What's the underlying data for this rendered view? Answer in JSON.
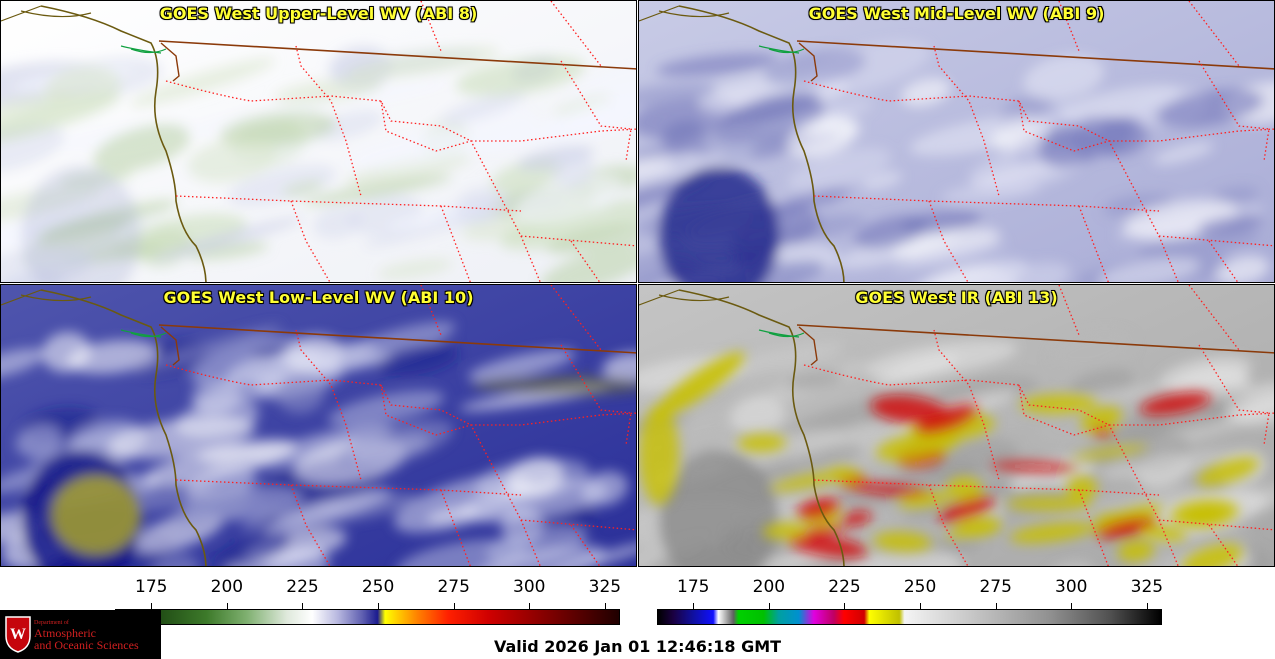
{
  "panels": [
    {
      "title": "GOES West Upper-Level WV (ABI 8)",
      "palette": "upper"
    },
    {
      "title": "GOES West Mid-Level WV (ABI 9)",
      "palette": "mid"
    },
    {
      "title": "GOES West Low-Level WV (ABI 10)",
      "palette": "low"
    },
    {
      "title": "GOES West IR (ABI 13)",
      "palette": "ir"
    }
  ],
  "colorbars": [
    {
      "name": "water-vapor",
      "ticks": [
        "175",
        "200",
        "225",
        "250",
        "275",
        "300",
        "325"
      ],
      "range": [
        163,
        330
      ]
    },
    {
      "name": "infrared",
      "ticks": [
        "175",
        "200",
        "225",
        "250",
        "275",
        "300",
        "325"
      ],
      "range": [
        163,
        330
      ]
    }
  ],
  "logo": {
    "line1": "Department of",
    "line2": "Atmospheric",
    "line3": "and Oceanic Sciences"
  },
  "valid_time": "Valid 2026 Jan 01 12:46:18 GMT",
  "colors": {
    "title": "#ffff33",
    "border": "#8b3a0a",
    "state_lines": "#ff2020",
    "coast": "#6b5a10"
  }
}
